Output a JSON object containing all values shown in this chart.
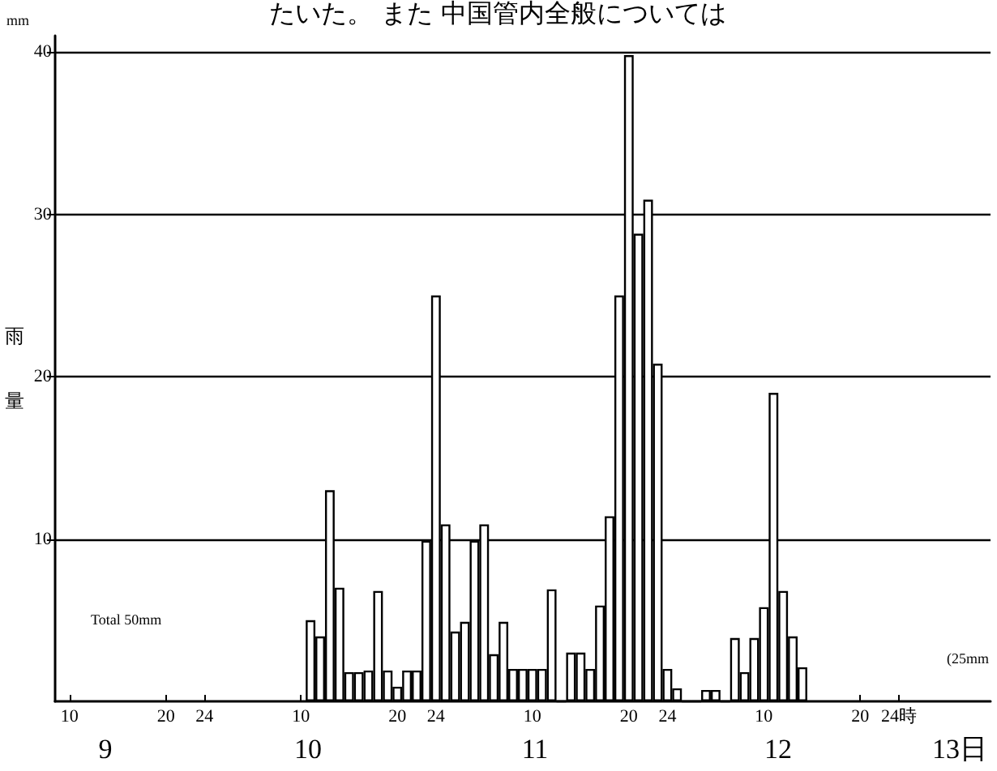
{
  "chart_data": {
    "type": "bar",
    "ylabel": "雨量",
    "annotations": [
      "たいた。 また 中国管内全般については",
      "mm",
      "Total 50mm",
      "(25mm",
      "9",
      "10",
      "11",
      "12",
      "13日"
    ],
    "categories": [
      null,
      "10",
      null,
      null,
      null,
      null,
      null,
      null,
      null,
      null,
      null,
      "20",
      null,
      null,
      null,
      "24",
      null,
      null,
      null,
      null,
      null,
      null,
      null,
      null,
      null,
      "10",
      null,
      null,
      null,
      null,
      null,
      null,
      null,
      null,
      null,
      "20",
      null,
      null,
      null,
      "24",
      null,
      null,
      null,
      null,
      null,
      null,
      null,
      null,
      null,
      "10",
      null,
      null,
      null,
      null,
      null,
      null,
      null,
      null,
      null,
      "20",
      null,
      null,
      null,
      "24",
      null,
      null,
      null,
      null,
      null,
      null,
      null,
      null,
      null,
      "10",
      null,
      null,
      null,
      null,
      null,
      null,
      null,
      null,
      null,
      "20",
      null,
      null,
      null,
      "24時",
      null,
      null,
      null,
      null,
      null,
      null,
      null,
      null,
      null
    ],
    "values": [
      null,
      null,
      null,
      null,
      null,
      null,
      null,
      null,
      null,
      null,
      null,
      null,
      null,
      null,
      null,
      null,
      null,
      null,
      null,
      null,
      null,
      null,
      null,
      null,
      null,
      null,
      5,
      4,
      13,
      7,
      1.8,
      1.8,
      1.9,
      6.8,
      1.9,
      0.9,
      1.9,
      1.9,
      9.9,
      25,
      10.9,
      4.3,
      4.9,
      9.9,
      10.9,
      2.9,
      4.9,
      2,
      2,
      2,
      2,
      6.9,
      0,
      3,
      3,
      2,
      5.9,
      11.4,
      25,
      39.8,
      28.8,
      30.9,
      20.8,
      2,
      0.8,
      0,
      0,
      0.7,
      0.7,
      0,
      3.9,
      1.8,
      3.9,
      5.8,
      19,
      6.8,
      4,
      2.1,
      null,
      null,
      null,
      null,
      null,
      null,
      null,
      null,
      null,
      null,
      null,
      null,
      null,
      null,
      null,
      null,
      null,
      null,
      null
    ],
    "color": "#000000",
    "ylim": [
      0,
      41
    ],
    "yticks": [
      10,
      20,
      30,
      40
    ],
    "grid": "y"
  }
}
